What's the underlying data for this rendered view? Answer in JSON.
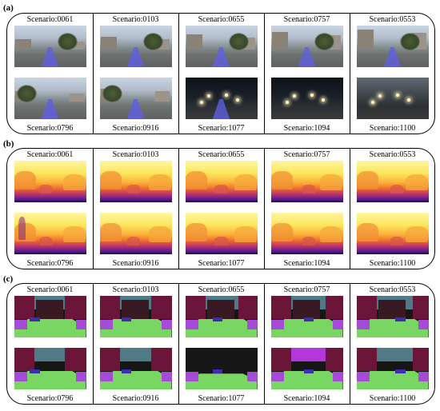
{
  "panels": [
    {
      "label": "(a)",
      "kind": "rgb",
      "top": [
        "Scenario:0061",
        "Scenario:0103",
        "Scenario:0655",
        "Scenario:0757",
        "Scenario:0553"
      ],
      "bottom": [
        "Scenario:0796",
        "Scenario:0916",
        "Scenario:1077",
        "Scenario:1094",
        "Scenario:1100"
      ]
    },
    {
      "label": "(b)",
      "kind": "depth",
      "top": [
        "Scenario:0061",
        "Scenario:0103",
        "Scenario:0655",
        "Scenario:0757",
        "Scenario:0553"
      ],
      "bottom": [
        "Scenario:0796",
        "Scenario:0916",
        "Scenario:1077",
        "Scenario:1094",
        "Scenario:1100"
      ]
    },
    {
      "label": "(c)",
      "kind": "segmentation",
      "top": [
        "Scenario:0061",
        "Scenario:0103",
        "Scenario:0655",
        "Scenario:0757",
        "Scenario:0553"
      ],
      "bottom": [
        "Scenario:0796",
        "Scenario:0916",
        "Scenario:1077",
        "Scenario:1094",
        "Scenario:1100"
      ]
    }
  ],
  "colors": {
    "road_overlay": "#5f5fe6",
    "depth_near": "#1e0b55",
    "depth_far": "#fff6a0",
    "seg_road": "#79d663",
    "seg_building": "#6b1638",
    "seg_sidewalk": "#a64ad8",
    "seg_sky": "#4f7a86"
  }
}
